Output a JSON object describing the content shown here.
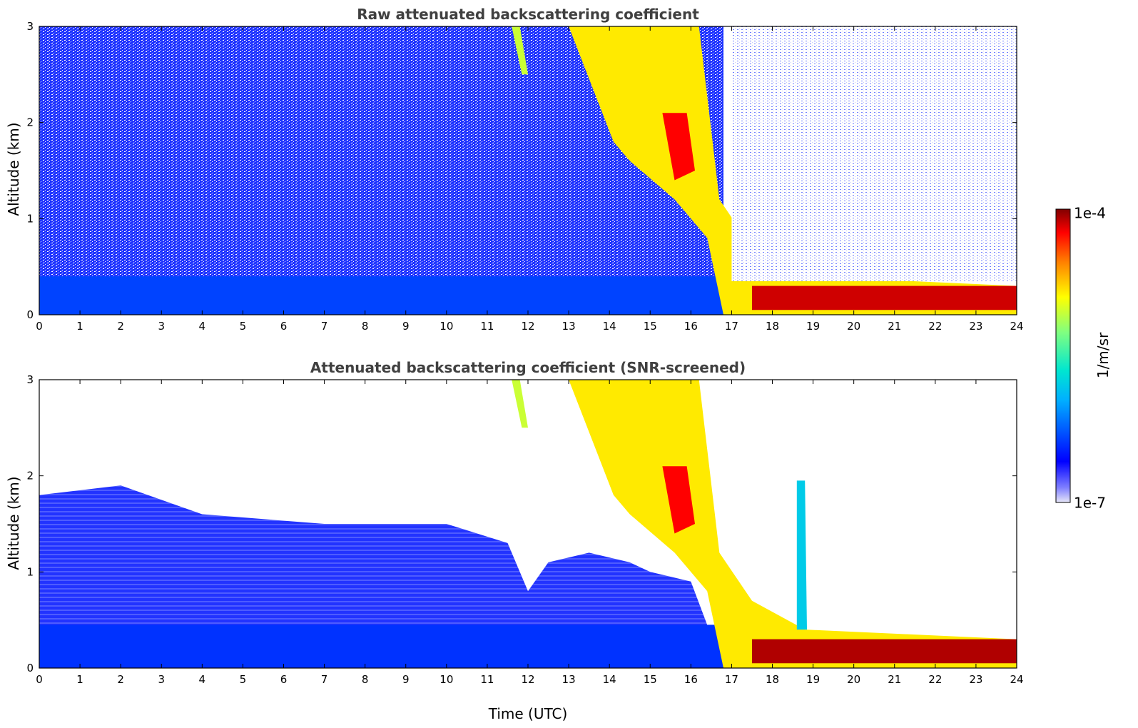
{
  "chart_data": [
    {
      "type": "heatmap",
      "title": "Raw attenuated backscattering coefficient",
      "xlabel": "",
      "ylabel": "Altitude (km)",
      "xlim": [
        0,
        24
      ],
      "ylim": [
        0,
        3
      ],
      "x_ticks": [
        "0",
        "1",
        "2",
        "3",
        "4",
        "5",
        "6",
        "7",
        "8",
        "9",
        "10",
        "11",
        "12",
        "13",
        "14",
        "15",
        "16",
        "17",
        "18",
        "19",
        "20",
        "21",
        "22",
        "23",
        "24"
      ],
      "y_ticks": [
        "0",
        "1",
        "2",
        "3"
      ],
      "features": [
        {
          "kind": "noise_background",
          "x_range": [
            0,
            16.8
          ],
          "y_range": [
            0,
            3
          ],
          "value_level": 0.12
        },
        {
          "kind": "surface_layer",
          "x_range": [
            0,
            16.8
          ],
          "y_range": [
            0,
            0.4
          ],
          "value_level": 0.22
        },
        {
          "kind": "cloud",
          "polygon": [
            [
              11.6,
              3.0
            ],
            [
              11.8,
              3.0
            ],
            [
              12.0,
              2.5
            ],
            [
              11.85,
              2.5
            ]
          ],
          "value_level": 0.65
        },
        {
          "kind": "cloud",
          "polygon": [
            [
              13.0,
              3.0
            ],
            [
              16.2,
              3.0
            ],
            [
              16.7,
              1.2
            ],
            [
              17.5,
              0.7
            ],
            [
              18.8,
              0.4
            ],
            [
              24,
              0.3
            ],
            [
              24,
              0.0
            ],
            [
              16.8,
              0.0
            ],
            [
              16.4,
              0.8
            ],
            [
              15.6,
              1.2
            ],
            [
              14.5,
              1.6
            ],
            [
              14.1,
              1.8
            ]
          ],
          "value_level": 0.72
        },
        {
          "kind": "cloud_core",
          "polygon": [
            [
              15.3,
              2.1
            ],
            [
              15.9,
              2.1
            ],
            [
              16.1,
              1.5
            ],
            [
              15.6,
              1.4
            ]
          ],
          "value_level": 0.92
        },
        {
          "kind": "boundary_layer",
          "x_range": [
            17.5,
            24
          ],
          "y_range": [
            0.05,
            0.3
          ],
          "value_level": 0.95
        },
        {
          "kind": "clear_sky",
          "x_range": [
            17.0,
            24
          ],
          "y_range": [
            0.35,
            3.0
          ],
          "value_level": 0.0
        }
      ],
      "colorbar": {
        "label": "1/m/sr",
        "min": "1e-7",
        "max": "1e-4",
        "scale": "log",
        "colormap": "jet"
      }
    },
    {
      "type": "heatmap",
      "title": "Attenuated backscattering coefficient (SNR-screened)",
      "xlabel": "Time (UTC)",
      "ylabel": "Altitude (km)",
      "xlim": [
        0,
        24
      ],
      "ylim": [
        0,
        3
      ],
      "x_ticks": [
        "0",
        "1",
        "2",
        "3",
        "4",
        "5",
        "6",
        "7",
        "8",
        "9",
        "10",
        "11",
        "12",
        "13",
        "14",
        "15",
        "16",
        "17",
        "18",
        "19",
        "20",
        "21",
        "22",
        "23",
        "24"
      ],
      "y_ticks": [
        "0",
        "1",
        "2",
        "3"
      ],
      "features": [
        {
          "kind": "aerosol_layer",
          "polygon": [
            [
              0,
              0
            ],
            [
              0,
              1.8
            ],
            [
              2.0,
              1.9
            ],
            [
              4.0,
              1.6
            ],
            [
              7.0,
              1.5
            ],
            [
              10.0,
              1.5
            ],
            [
              11.5,
              1.3
            ],
            [
              12.0,
              0.8
            ],
            [
              12.5,
              1.1
            ],
            [
              13.5,
              1.2
            ],
            [
              14.5,
              1.1
            ],
            [
              15.0,
              1.0
            ],
            [
              16.0,
              0.9
            ],
            [
              16.8,
              0.0
            ]
          ],
          "value_level": 0.14
        },
        {
          "kind": "surface_layer",
          "x_range": [
            0,
            16.8
          ],
          "y_range": [
            0,
            0.45
          ],
          "value_level": 0.2
        },
        {
          "kind": "cloud",
          "polygon": [
            [
              11.6,
              3.0
            ],
            [
              11.8,
              3.0
            ],
            [
              12.0,
              2.5
            ],
            [
              11.85,
              2.5
            ]
          ],
          "value_level": 0.65
        },
        {
          "kind": "cloud",
          "polygon": [
            [
              13.0,
              3.0
            ],
            [
              16.2,
              3.0
            ],
            [
              16.7,
              1.2
            ],
            [
              17.5,
              0.7
            ],
            [
              18.8,
              0.4
            ],
            [
              24,
              0.3
            ],
            [
              24,
              0.0
            ],
            [
              16.8,
              0.0
            ],
            [
              16.4,
              0.8
            ],
            [
              15.6,
              1.2
            ],
            [
              14.5,
              1.6
            ],
            [
              14.1,
              1.8
            ]
          ],
          "value_level": 0.72
        },
        {
          "kind": "cloud_core",
          "polygon": [
            [
              15.3,
              2.1
            ],
            [
              15.9,
              2.1
            ],
            [
              16.1,
              1.5
            ],
            [
              15.6,
              1.4
            ]
          ],
          "value_level": 0.92
        },
        {
          "kind": "cloud_plume",
          "polygon": [
            [
              18.6,
              1.95
            ],
            [
              18.8,
              1.95
            ],
            [
              18.85,
              0.4
            ],
            [
              18.6,
              0.4
            ]
          ],
          "value_level": 0.4
        },
        {
          "kind": "boundary_layer",
          "x_range": [
            17.5,
            24
          ],
          "y_range": [
            0.05,
            0.3
          ],
          "value_level": 0.97
        }
      ],
      "colorbar": {
        "label": "1/m/sr",
        "min": "1e-7",
        "max": "1e-4",
        "scale": "log",
        "colormap": "jet"
      }
    }
  ],
  "colorbar": {
    "label": "1/m/sr",
    "max_label": "1e-4",
    "min_label": "1e-7"
  }
}
